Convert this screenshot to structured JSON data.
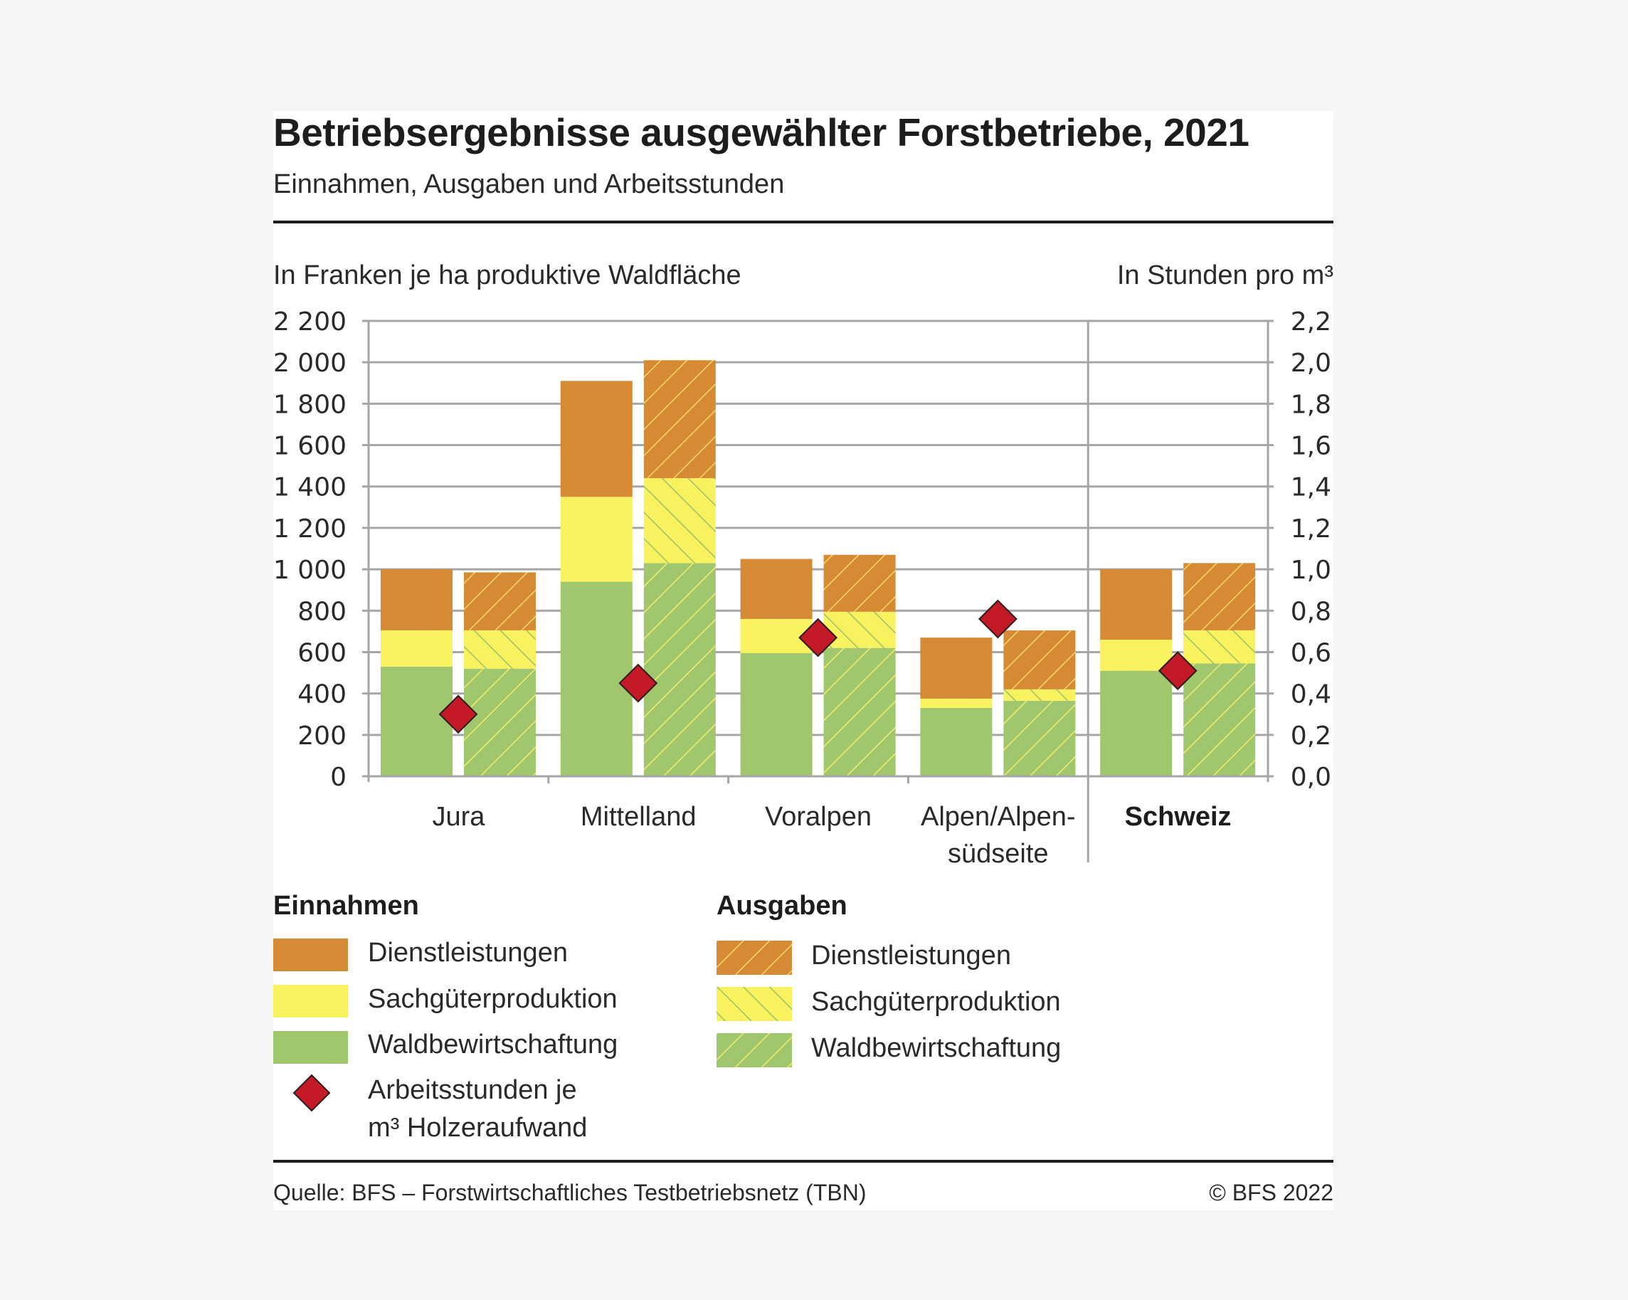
{
  "header": {
    "title": "Betriebsergebnisse ausgewählter Forstbetriebe, 2021",
    "subtitle": "Einnahmen, Ausgaben und Arbeitsstunden"
  },
  "colors": {
    "dienstleistungen": "#D68A33",
    "sachgueter": "#F8F25E",
    "wald": "#A0C66E",
    "hatch_on_orange": "#F5D76A",
    "hatch_on_yellow": "#9DBF6E",
    "hatch_on_green": "#F2EE6A",
    "diamond": "#C41A27",
    "grid": "#a6a6a6"
  },
  "chart_data": {
    "type": "bar",
    "subtype": "grouped-stacked with secondary-axis markers",
    "title": "Betriebsergebnisse ausgewählter Forstbetriebe, 2021",
    "subtitle": "Einnahmen, Ausgaben und Arbeitsstunden",
    "ylabel": "In Franken je ha produktive Waldfläche",
    "y2label": "In Stunden pro m³",
    "ylim": [
      0,
      2200
    ],
    "y2lim": [
      0,
      2.2
    ],
    "yticks": [
      "0",
      "200",
      "400",
      "600",
      "800",
      "1 000",
      "1 200",
      "1 400",
      "1 600",
      "1 800",
      "2 000",
      "2 200"
    ],
    "y2ticks": [
      "0,0",
      "0,2",
      "0,4",
      "0,6",
      "0,8",
      "1,0",
      "1,2",
      "1,4",
      "1,6",
      "1,8",
      "2,0",
      "2,2"
    ],
    "grid": true,
    "categories": [
      "Jura",
      "Mittelland",
      "Voralpen",
      "Alpen/Alpen-\nsüdseite",
      "Schweiz"
    ],
    "category_lines": [
      [
        "Jura"
      ],
      [
        "Mittelland"
      ],
      [
        "Voralpen"
      ],
      [
        "Alpen/Alpen-",
        "südseite"
      ],
      [
        "Schweiz"
      ]
    ],
    "highlight_category": "Schweiz",
    "stack_order": [
      "Waldbewirtschaftung",
      "Sachgüterproduktion",
      "Dienstleistungen"
    ],
    "series": [
      {
        "name": "Einnahmen",
        "hatched": false,
        "stacks": {
          "Waldbewirtschaftung": [
            530,
            940,
            595,
            330,
            510
          ],
          "Sachgüterproduktion": [
            175,
            410,
            165,
            45,
            150
          ],
          "Dienstleistungen": [
            295,
            560,
            290,
            295,
            340
          ]
        }
      },
      {
        "name": "Ausgaben",
        "hatched": true,
        "stacks": {
          "Waldbewirtschaftung": [
            520,
            1030,
            620,
            365,
            545
          ],
          "Sachgüterproduktion": [
            185,
            410,
            175,
            55,
            160
          ],
          "Dienstleistungen": [
            280,
            570,
            275,
            285,
            325
          ]
        }
      }
    ],
    "markers": {
      "name": "Arbeitsstunden je m³ Holzeraufwand",
      "axis": "y2",
      "shape": "diamond",
      "values": [
        0.3,
        0.45,
        0.67,
        0.76,
        0.51
      ]
    }
  },
  "legend": {
    "einnahmen": {
      "heading": "Einnahmen",
      "items": [
        "Dienstleistungen",
        "Sachgüterproduktion",
        "Waldbewirtschaftung"
      ],
      "marker_line1": "Arbeitsstunden je",
      "marker_line2": "m³ Holzeraufwand"
    },
    "ausgaben": {
      "heading": "Ausgaben",
      "items": [
        "Dienstleistungen",
        "Sachgüterproduktion",
        "Waldbewirtschaftung"
      ]
    }
  },
  "footer": {
    "source": "Quelle: BFS –  Forstwirtschaftliches Testbetriebsnetz (TBN)",
    "copyright": "© BFS 2022"
  }
}
